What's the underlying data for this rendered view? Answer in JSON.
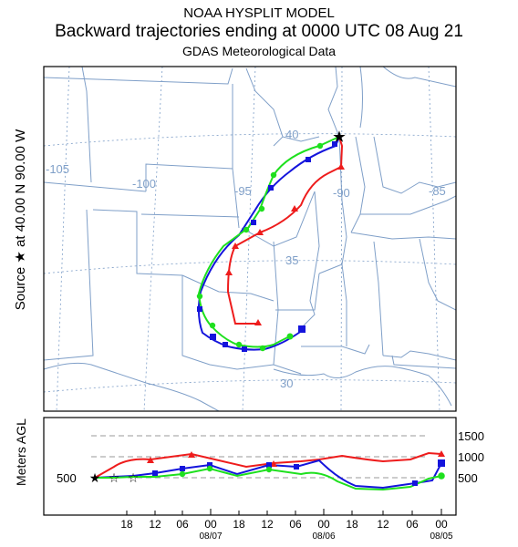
{
  "header": {
    "line1": "NOAA HYSPLIT MODEL",
    "line2": "Backward trajectories ending at 0000 UTC 08 Aug 21",
    "line3": "GDAS Meteorological Data"
  },
  "source_label": "Source ★ at 40.00 N 90.00 W",
  "height_axis_label": "Meters AGL",
  "map": {
    "longitude_labels": [
      "-105",
      "-100",
      "-95",
      "-90",
      "-85"
    ],
    "latitude_labels": [
      "40",
      "35",
      "30"
    ]
  },
  "heights": {
    "levels": [
      "1500",
      "1000",
      "500"
    ],
    "start_level": "500"
  },
  "time_axis": {
    "hours": [
      "18",
      "12",
      "06",
      "00",
      "18",
      "12",
      "06",
      "00",
      "18",
      "12",
      "06",
      "00"
    ],
    "dates": [
      "08/07",
      "08/06",
      "08/05"
    ]
  },
  "colors": {
    "red": "#ee1c1c",
    "blue": "#1414dc",
    "green": "#1ee01e",
    "map_lines": "#7f9fc8",
    "frame": "#000000"
  }
}
